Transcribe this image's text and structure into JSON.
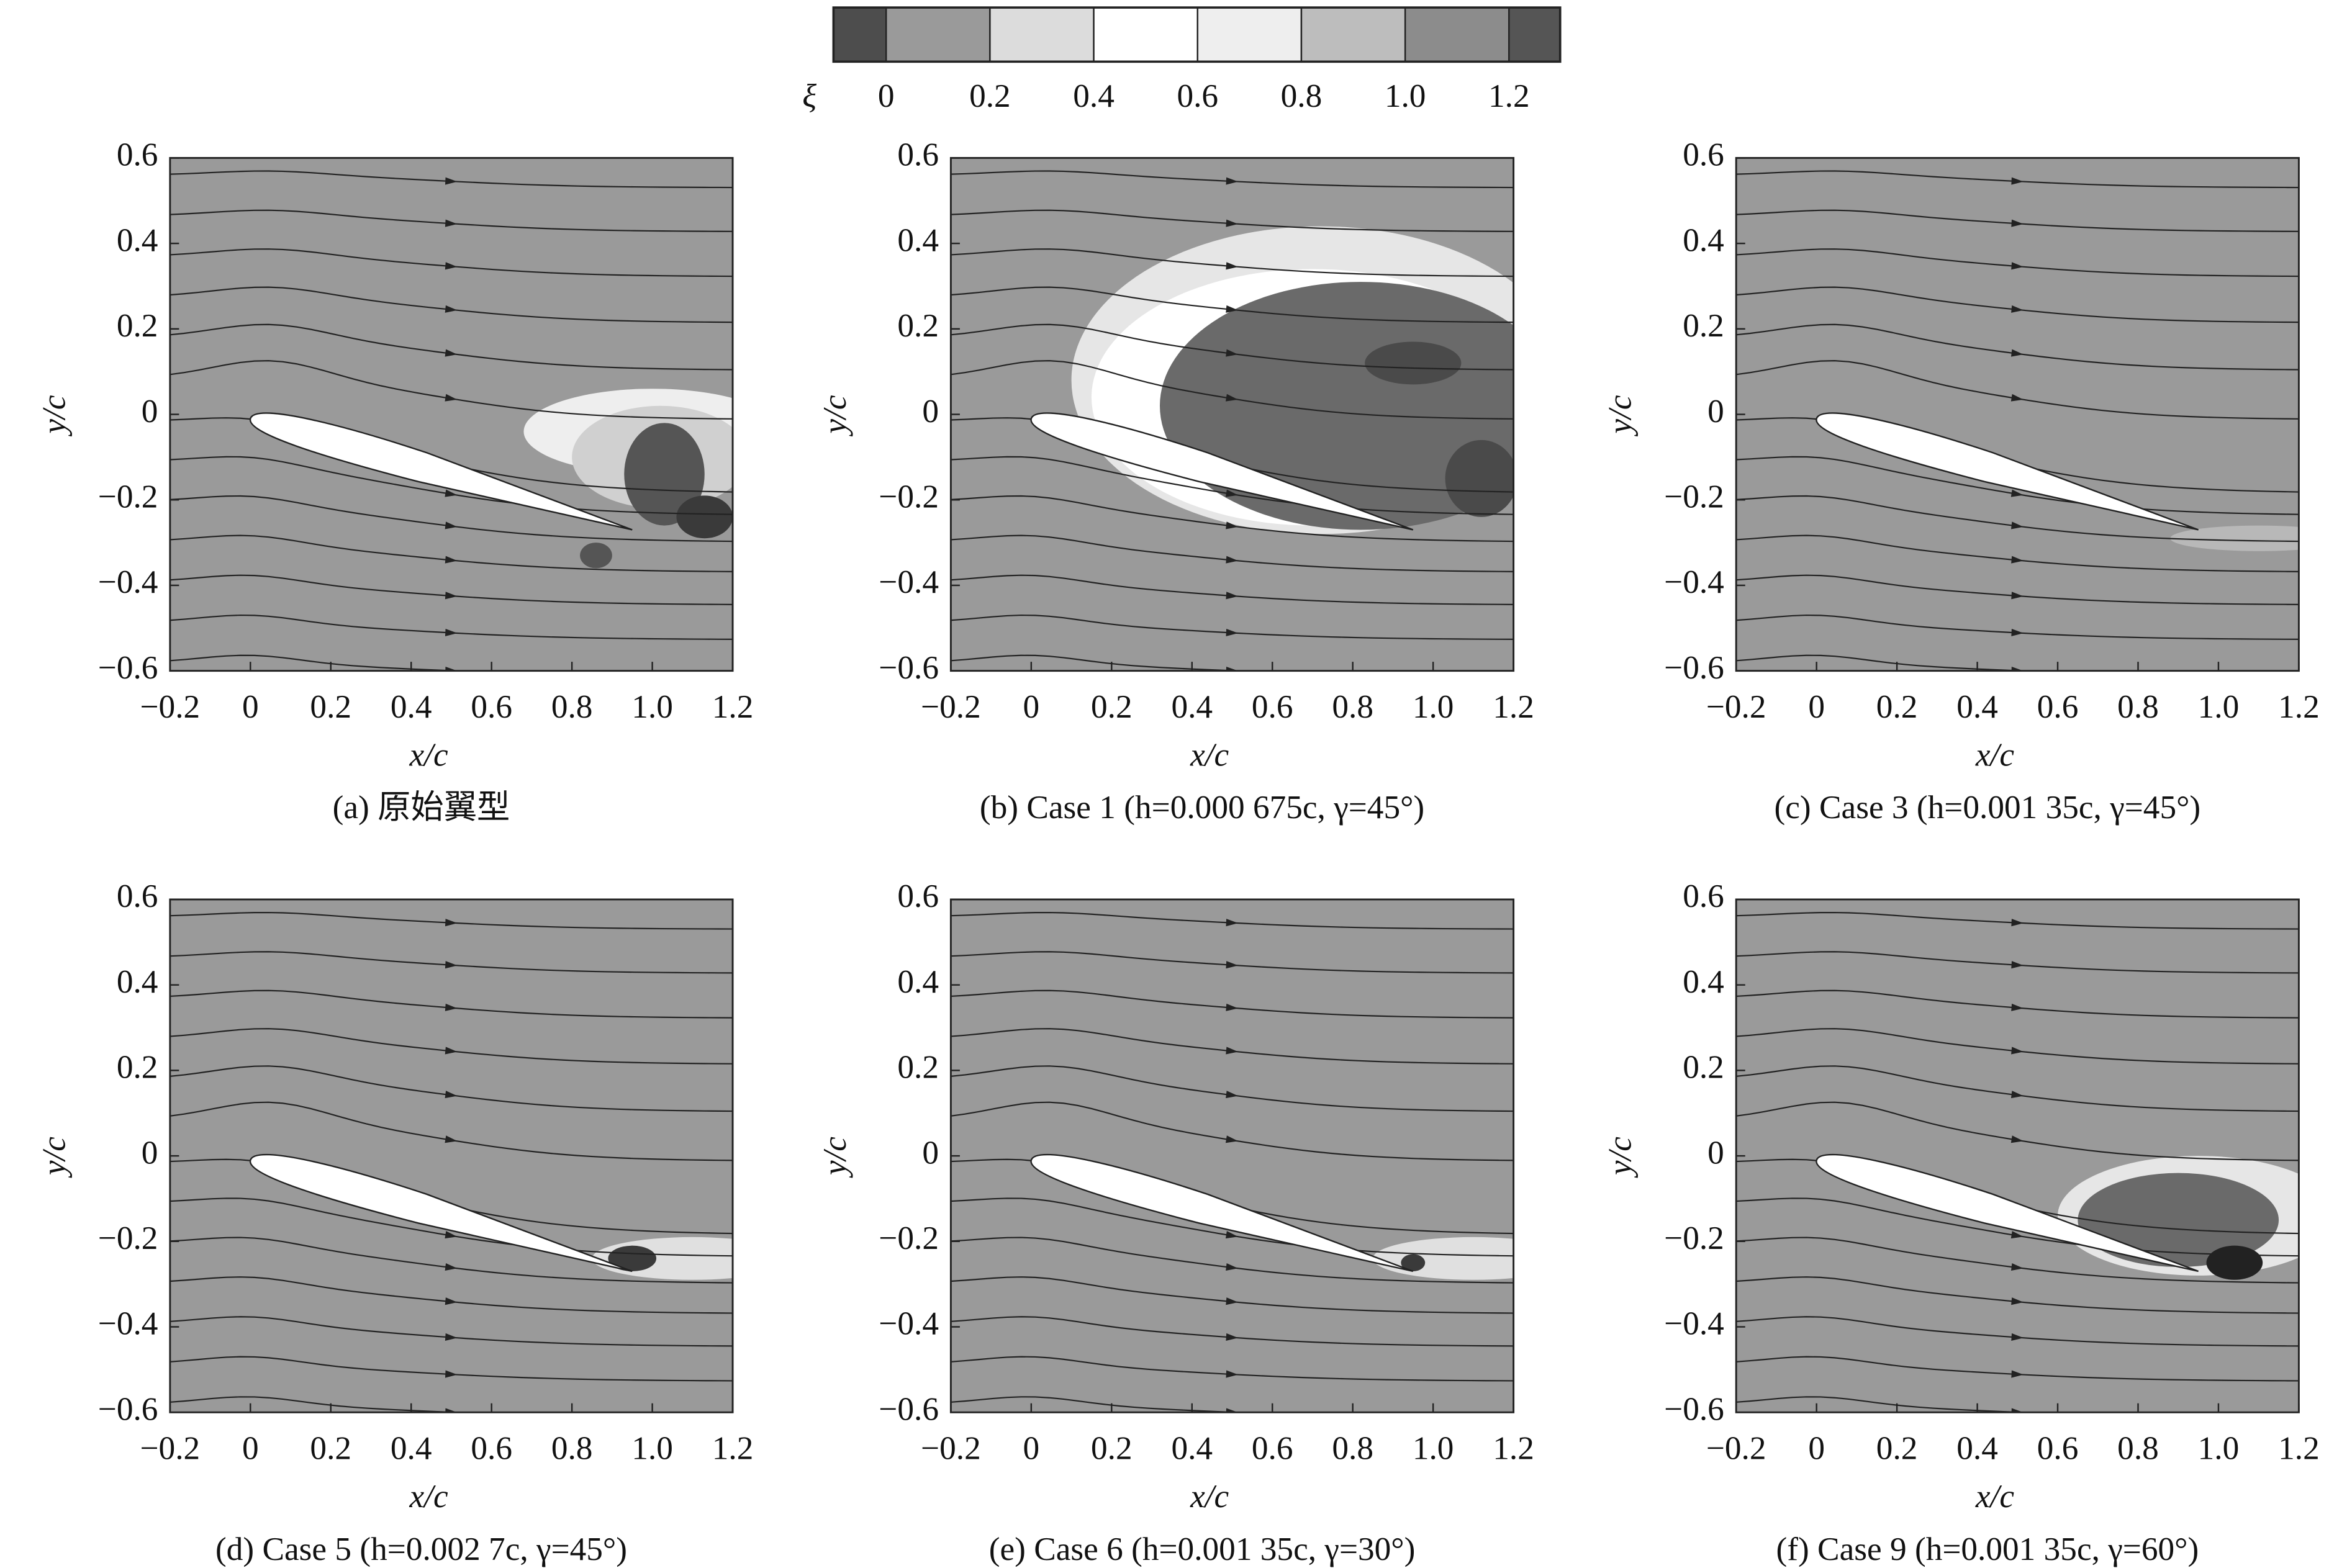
{
  "colorbar": {
    "symbol": "ξ",
    "colors": [
      "#4d4d4d",
      "#9a9a9a",
      "#dcdcdc",
      "#ffffff",
      "#eeeeee",
      "#bdbdbd",
      "#8c8c8c",
      "#555555"
    ],
    "ticks": [
      0,
      0.2,
      0.4,
      0.6,
      0.8,
      {
        "value": 1,
        "label": "1.0"
      },
      1.2
    ]
  },
  "chart_data": [
    {
      "type": "contour",
      "caption": "(a) 原始翼型",
      "xlabel": "x/c",
      "ylabel": "y/c",
      "xlim": [
        -0.2,
        1.2
      ],
      "ylim": [
        -0.6,
        0.6
      ],
      "xticks": [
        {
          "value": -0.2,
          "label": "−0.2"
        },
        0,
        0.2,
        0.4,
        0.6,
        0.8,
        {
          "value": 1,
          "label": "1.0"
        },
        1.2
      ],
      "yticks": [
        {
          "value": -0.6,
          "label": "−0.6"
        },
        {
          "value": -0.4,
          "label": "−0.4"
        },
        {
          "value": -0.2,
          "label": "−0.2"
        },
        0,
        0.2,
        0.4,
        0.6
      ]
    },
    {
      "type": "contour",
      "caption": "(b) Case 1 (h=0.000 675c, γ=45°)",
      "xlabel": "x/c",
      "ylabel": "y/c",
      "xlim": [
        -0.2,
        1.2
      ],
      "ylim": [
        -0.6,
        0.6
      ],
      "xticks": [
        {
          "value": -0.2,
          "label": "−0.2"
        },
        0,
        0.2,
        0.4,
        0.6,
        0.8,
        {
          "value": 1,
          "label": "1.0"
        },
        1.2
      ],
      "yticks": [
        {
          "value": -0.6,
          "label": "−0.6"
        },
        {
          "value": -0.4,
          "label": "−0.4"
        },
        {
          "value": -0.2,
          "label": "−0.2"
        },
        0,
        0.2,
        0.4,
        0.6
      ]
    },
    {
      "type": "contour",
      "caption": "(c) Case 3 (h=0.001 35c, γ=45°)",
      "xlabel": "x/c",
      "ylabel": "y/c",
      "xlim": [
        -0.2,
        1.2
      ],
      "ylim": [
        -0.6,
        0.6
      ],
      "xticks": [
        {
          "value": -0.2,
          "label": "−0.2"
        },
        0,
        0.2,
        0.4,
        0.6,
        0.8,
        {
          "value": 1,
          "label": "1.0"
        },
        1.2
      ],
      "yticks": [
        {
          "value": -0.6,
          "label": "−0.6"
        },
        {
          "value": -0.4,
          "label": "−0.4"
        },
        {
          "value": -0.2,
          "label": "−0.2"
        },
        0,
        0.2,
        0.4,
        0.6
      ]
    },
    {
      "type": "contour",
      "caption": "(d) Case 5 (h=0.002 7c, γ=45°)",
      "xlabel": "x/c",
      "ylabel": "y/c",
      "xlim": [
        -0.2,
        1.2
      ],
      "ylim": [
        -0.6,
        0.6
      ],
      "xticks": [
        {
          "value": -0.2,
          "label": "−0.2"
        },
        0,
        0.2,
        0.4,
        0.6,
        0.8,
        {
          "value": 1,
          "label": "1.0"
        },
        1.2
      ],
      "yticks": [
        {
          "value": -0.6,
          "label": "−0.6"
        },
        {
          "value": -0.4,
          "label": "−0.4"
        },
        {
          "value": -0.2,
          "label": "−0.2"
        },
        0,
        0.2,
        0.4,
        0.6
      ]
    },
    {
      "type": "contour",
      "caption": "(e) Case 6 (h=0.001 35c, γ=30°)",
      "xlabel": "x/c",
      "ylabel": "y/c",
      "xlim": [
        -0.2,
        1.2
      ],
      "ylim": [
        -0.6,
        0.6
      ],
      "xticks": [
        {
          "value": -0.2,
          "label": "−0.2"
        },
        0,
        0.2,
        0.4,
        0.6,
        0.8,
        {
          "value": 1,
          "label": "1.0"
        },
        1.2
      ],
      "yticks": [
        {
          "value": -0.6,
          "label": "−0.6"
        },
        {
          "value": -0.4,
          "label": "−0.4"
        },
        {
          "value": -0.2,
          "label": "−0.2"
        },
        0,
        0.2,
        0.4,
        0.6
      ]
    },
    {
      "type": "contour",
      "caption": "(f) Case 9 (h=0.001 35c, γ=60°)",
      "xlabel": "x/c",
      "ylabel": "y/c",
      "xlim": [
        -0.2,
        1.2
      ],
      "ylim": [
        -0.6,
        0.6
      ],
      "xticks": [
        {
          "value": -0.2,
          "label": "−0.2"
        },
        0,
        0.2,
        0.4,
        0.6,
        0.8,
        {
          "value": 1,
          "label": "1.0"
        },
        1.2
      ],
      "yticks": [
        {
          "value": -0.6,
          "label": "−0.6"
        },
        {
          "value": -0.4,
          "label": "−0.4"
        },
        {
          "value": -0.2,
          "label": "−0.2"
        },
        0,
        0.2,
        0.4,
        0.6
      ]
    }
  ]
}
